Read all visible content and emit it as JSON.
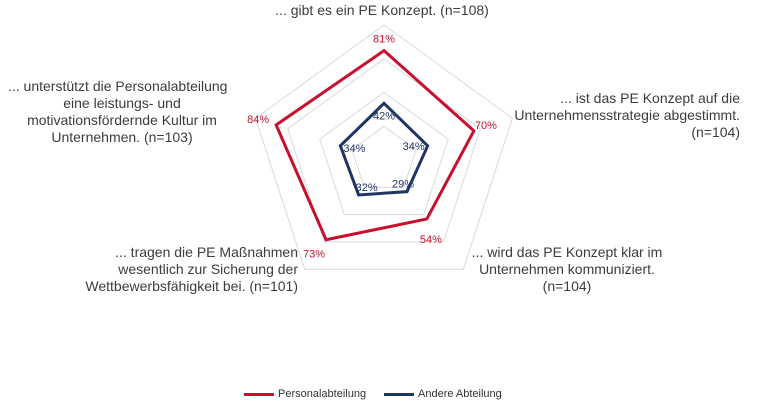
{
  "chart_data": {
    "type": "radar",
    "axes": [
      {
        "label_lines": [
          "... gibt es ein PE Konzept. (n=108)"
        ]
      },
      {
        "label_lines": [
          "... ist das PE Konzept auf die",
          "Unternehmensstrategie abgestimmt.",
          "(n=104)"
        ]
      },
      {
        "label_lines": [
          "... wird das PE Konzept klar im",
          "Unternehmen kommuniziert.",
          "(n=104)"
        ]
      },
      {
        "label_lines": [
          "... tragen die PE Maßnahmen",
          "wesentlich zur Sicherung der",
          "Wettbewerbsfähigkeit bei. (n=101)"
        ]
      },
      {
        "label_lines": [
          "... unterstützt die Personalabteilung",
          "eine leistungs- und",
          "motivationsfördernde Kultur im",
          "Unternehmen. (n=103)"
        ]
      }
    ],
    "series": [
      {
        "name": "Personalabteilung",
        "color": "#c8102e",
        "values": [
          81,
          70,
          54,
          73,
          84
        ],
        "labels": [
          "81%",
          "70%",
          "54%",
          "73%",
          "84%"
        ]
      },
      {
        "name": "Andere Abteilung",
        "color": "#1f3564",
        "values": [
          42,
          34,
          29,
          32,
          34
        ],
        "labels": [
          "42%",
          "34%",
          "29%",
          "32%",
          "34%"
        ]
      }
    ],
    "rlim": [
      0,
      100
    ],
    "grid": true,
    "legend": "bottom"
  }
}
